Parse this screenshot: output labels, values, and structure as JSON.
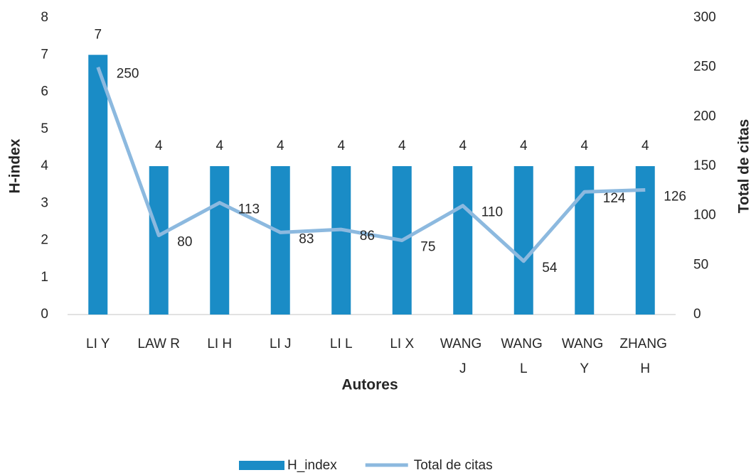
{
  "chart_data": {
    "type": "bar_line",
    "categories": [
      "LI Y",
      "LAW R",
      "LI H",
      "LI J",
      "LI L",
      "LI X",
      "WANG J",
      "WANG L",
      "WANG Y",
      "ZHANG H"
    ],
    "series": [
      {
        "name": "H_index",
        "type": "bar",
        "color": "#1a8cc6",
        "values": [
          7,
          4,
          4,
          4,
          4,
          4,
          4,
          4,
          4,
          4
        ]
      },
      {
        "name": "Total de citas",
        "type": "line",
        "axis": "y2",
        "color": "#8cb9df",
        "values": [
          250,
          80,
          113,
          83,
          86,
          75,
          110,
          54,
          124,
          126
        ]
      }
    ],
    "x_label": "Autores",
    "y_label": "H-index",
    "y2_label": "Total de citas",
    "ylim": [
      0,
      8
    ],
    "yticks": [
      0,
      1,
      2,
      3,
      4,
      5,
      6,
      7,
      8
    ],
    "y2lim": [
      0,
      300
    ],
    "y2ticks": [
      0,
      50,
      100,
      150,
      200,
      250,
      300
    ],
    "legend": "bottom"
  }
}
